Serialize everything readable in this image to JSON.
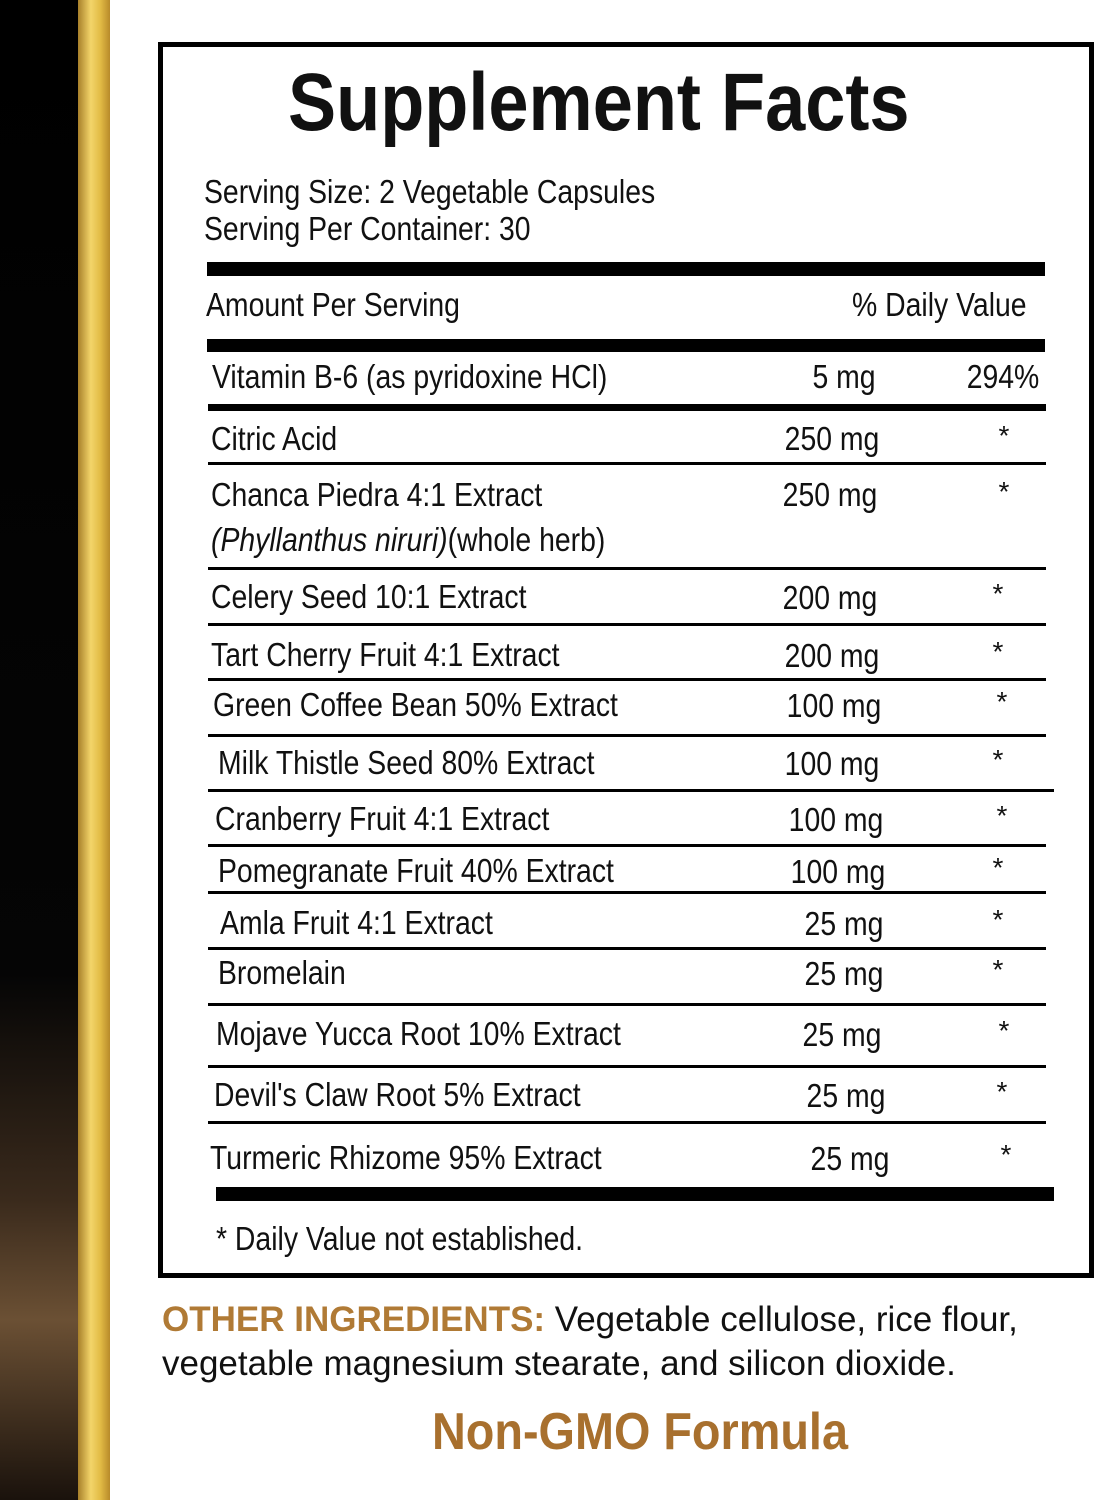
{
  "label": {
    "title": "Supplement Facts",
    "serving_size": "Serving Size: 2 Vegetable Capsules",
    "servings_per_container": "Serving Per Container: 30",
    "amount_header": "Amount Per Serving",
    "dv_header": "% Daily Value",
    "rows": [
      {
        "name": "Vitamin B-6 (as pyridoxine HCl)",
        "amount": "5 mg",
        "dv": "294%"
      },
      {
        "name": "Citric Acid",
        "amount": "250 mg",
        "dv": "*"
      },
      {
        "name": "Chanca Piedra 4:1 Extract",
        "latin": "(Phyllanthus niruri)",
        "part": "(whole herb)",
        "amount": "250 mg",
        "dv": "*"
      },
      {
        "name": "Celery Seed 10:1 Extract",
        "amount": "200 mg",
        "dv": "*"
      },
      {
        "name": "Tart Cherry Fruit 4:1 Extract",
        "amount": "200 mg",
        "dv": "*"
      },
      {
        "name": "Green Coffee Bean 50% Extract",
        "amount": "100 mg",
        "dv": "*"
      },
      {
        "name": "Milk Thistle Seed 80% Extract",
        "amount": "100 mg",
        "dv": "*"
      },
      {
        "name": "Cranberry Fruit 4:1 Extract",
        "amount": "100 mg",
        "dv": "*"
      },
      {
        "name": "Pomegranate Fruit 40% Extract",
        "amount": "100 mg",
        "dv": "*"
      },
      {
        "name": "Amla Fruit 4:1 Extract",
        "amount": "25 mg",
        "dv": "*"
      },
      {
        "name": "Bromelain",
        "amount": "25 mg",
        "dv": "*"
      },
      {
        "name": "Mojave Yucca Root 10% Extract",
        "amount": "25 mg",
        "dv": "*"
      },
      {
        "name": "Devil's Claw Root 5% Extract",
        "amount": "25 mg",
        "dv": "*"
      },
      {
        "name": "Turmeric Rhizome 95% Extract",
        "amount": "25 mg",
        "dv": "*"
      }
    ],
    "footnote": "* Daily Value not established."
  },
  "other_ingredients": {
    "label": "OTHER INGREDIENTS:",
    "text_line1": " Vegetable cellulose, rice flour,",
    "text_line2": "vegetable magnesium stearate, and silicon dioxide."
  },
  "badge": "Non-GMO Formula",
  "colors": {
    "gold": "#e2bb45",
    "brown_text": "#a8702e",
    "black": "#000000"
  }
}
